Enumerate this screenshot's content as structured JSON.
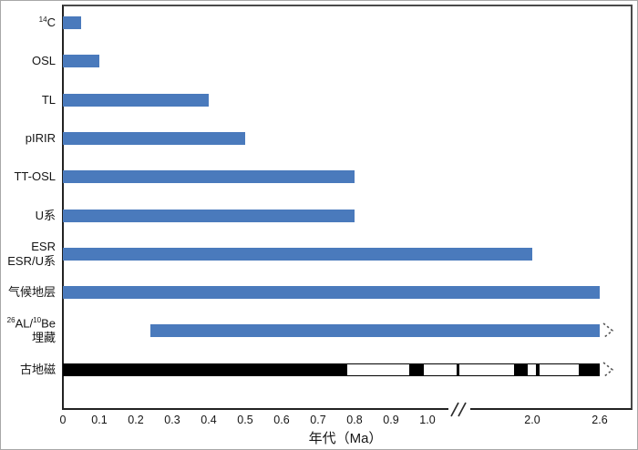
{
  "chart_data": {
    "type": "bar",
    "orientation": "horizontal",
    "xlabel": "年代（Ma）",
    "x_unit": "Ma",
    "axis_break": {
      "after_ma": 1.0,
      "before_ma": 2.0
    },
    "x_ticks": [
      {
        "label": "0",
        "ma": 0
      },
      {
        "label": "0.1",
        "ma": 0.1
      },
      {
        "label": "0.2",
        "ma": 0.2
      },
      {
        "label": "0.3",
        "ma": 0.3
      },
      {
        "label": "0.4",
        "ma": 0.4
      },
      {
        "label": "0.5",
        "ma": 0.5
      },
      {
        "label": "0.6",
        "ma": 0.6
      },
      {
        "label": "0.7",
        "ma": 0.7
      },
      {
        "label": "0.8",
        "ma": 0.8
      },
      {
        "label": "0.9",
        "ma": 0.9
      },
      {
        "label": "1.0",
        "ma": 1.0
      },
      {
        "label": "2.0",
        "ma": 2.0
      },
      {
        "label": "2.6",
        "ma": 2.6
      }
    ],
    "rows": [
      {
        "name": "radiocarbon",
        "label_text": "14C",
        "label_lines": [
          [
            {
              "sup": "14"
            },
            {
              "t": "C"
            }
          ]
        ],
        "start_ma": 0,
        "end_ma": 0.05,
        "style": "blue",
        "arrow": false
      },
      {
        "name": "osl",
        "label_text": "OSL",
        "label_lines": [
          [
            {
              "t": "OSL"
            }
          ]
        ],
        "start_ma": 0,
        "end_ma": 0.1,
        "style": "blue",
        "arrow": false
      },
      {
        "name": "tl",
        "label_text": "TL",
        "label_lines": [
          [
            {
              "t": "TL"
            }
          ]
        ],
        "start_ma": 0,
        "end_ma": 0.4,
        "style": "blue",
        "arrow": false
      },
      {
        "name": "pirir",
        "label_text": "pIRIR",
        "label_lines": [
          [
            {
              "t": "pIRIR"
            }
          ]
        ],
        "start_ma": 0,
        "end_ma": 0.5,
        "style": "blue",
        "arrow": false
      },
      {
        "name": "tt-osl",
        "label_text": "TT-OSL",
        "label_lines": [
          [
            {
              "t": "TT-OSL"
            }
          ]
        ],
        "start_ma": 0,
        "end_ma": 0.8,
        "style": "blue",
        "arrow": false
      },
      {
        "name": "u-series",
        "label_text": "U系",
        "label_lines": [
          [
            {
              "t": "U系"
            }
          ]
        ],
        "start_ma": 0,
        "end_ma": 0.8,
        "style": "blue",
        "arrow": false
      },
      {
        "name": "esr-u-series",
        "label_text": "ESR / ESR/U系",
        "label_lines": [
          [
            {
              "t": "ESR"
            }
          ],
          [
            {
              "t": "ESR/U系"
            }
          ]
        ],
        "start_ma": 0,
        "end_ma": 2.0,
        "style": "blue",
        "arrow": false
      },
      {
        "name": "climate-stratigraphy",
        "label_text": "气候地层",
        "label_lines": [
          [
            {
              "t": "气候地层"
            }
          ]
        ],
        "start_ma": 0,
        "end_ma": 2.6,
        "style": "blue",
        "arrow": false
      },
      {
        "name": "al-be-burial",
        "label_text": "26AL/10Be 埋藏",
        "label_lines": [
          [
            {
              "sup": "26"
            },
            {
              "t": "AL/"
            },
            {
              "sup": "10"
            },
            {
              "t": "Be"
            }
          ],
          [
            {
              "t": "埋藏"
            }
          ]
        ],
        "start_ma": 0.24,
        "end_ma": 2.6,
        "style": "blue",
        "arrow": true
      },
      {
        "name": "paleomagnetism",
        "label_text": "古地磁",
        "label_lines": [
          [
            {
              "t": "古地磁"
            }
          ]
        ],
        "start_ma": 0,
        "end_ma": 2.6,
        "style": "polarity",
        "arrow": true,
        "normal_polarity_segments_ma": [
          [
            0,
            0.78
          ],
          [
            0.95,
            0.99
          ],
          [
            1.08,
            1.089
          ],
          [
            1.84,
            1.96
          ],
          [
            2.04,
            2.065
          ],
          [
            2.42,
            2.6
          ]
        ]
      }
    ],
    "colors": {
      "bar_blue": "#4a7abc",
      "polarity_black": "#000000",
      "axis": "#333333"
    }
  }
}
